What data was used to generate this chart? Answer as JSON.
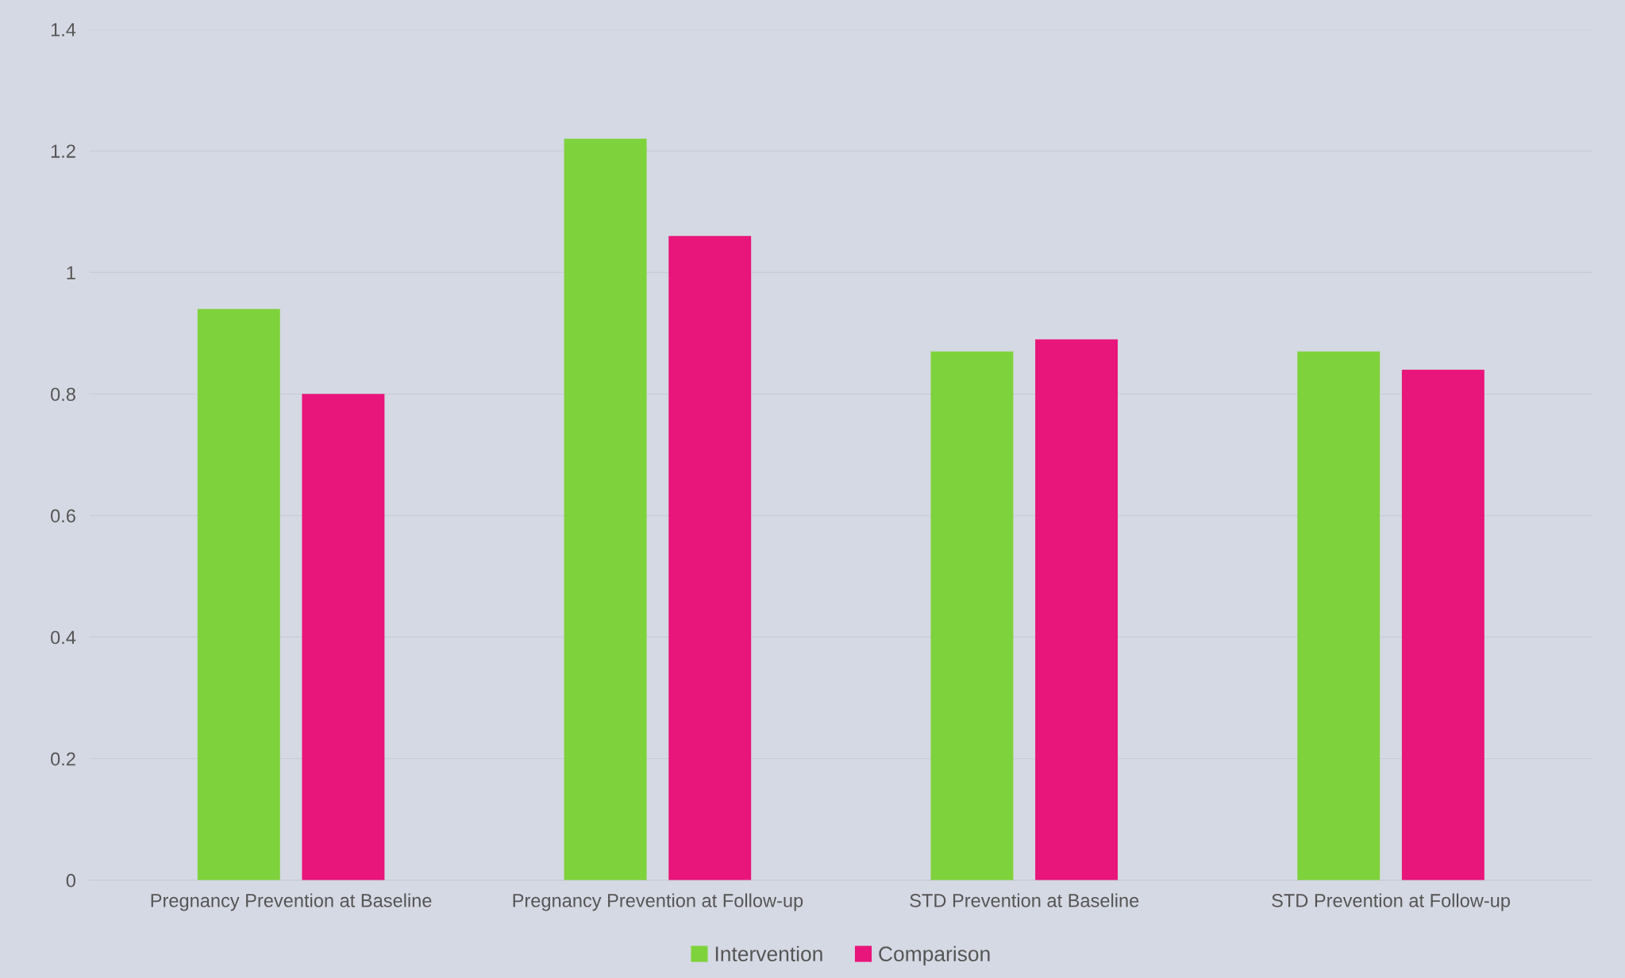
{
  "chart_data": {
    "type": "bar",
    "categories": [
      "Pregnancy Prevention at Baseline",
      "Pregnancy Prevention at Follow-up",
      "STD Prevention at Baseline",
      "STD Prevention at Follow-up"
    ],
    "series": [
      {
        "name": "Intervention",
        "color": "#7ed23b",
        "values": [
          0.94,
          1.22,
          0.87,
          0.87
        ]
      },
      {
        "name": "Comparison",
        "color": "#e8157a",
        "values": [
          0.8,
          1.06,
          0.89,
          0.84
        ]
      }
    ],
    "ylim": [
      0,
      1.4
    ],
    "yticks": [
      0,
      0.2,
      0.4,
      0.6,
      0.8,
      1,
      1.2,
      1.4
    ],
    "grid": "y",
    "legend": "bottom"
  }
}
